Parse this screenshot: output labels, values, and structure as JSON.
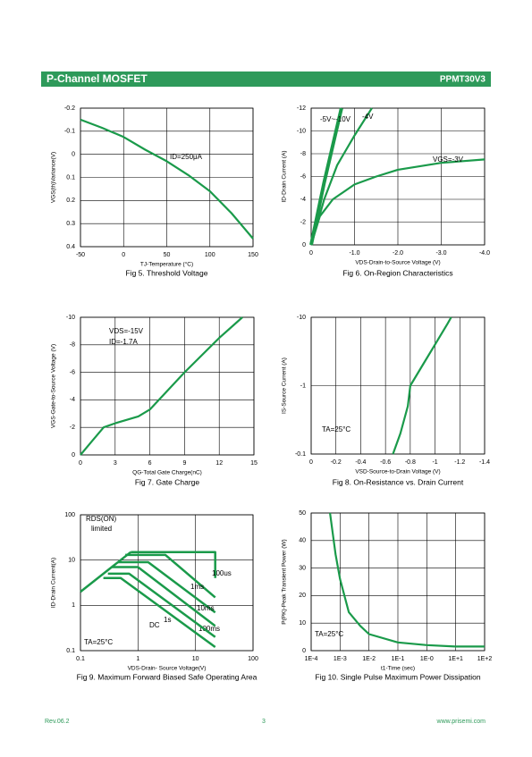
{
  "header": {
    "title": "P-Channel MOSFET",
    "part": "PPMT30V3"
  },
  "chart_data": [
    {
      "type": "line",
      "caption": "Fig 5. Threshold Voltage",
      "x_label": "TJ-Temperature (°C)",
      "y_label": "VGS(th)Variance(V)",
      "xlim": [
        -50,
        150
      ],
      "xticks": [
        -50,
        0,
        50,
        100,
        150
      ],
      "ylim": [
        0.4,
        -0.2
      ],
      "yticks": [
        -0.2,
        -0.1,
        0,
        0.1,
        0.2,
        0.3,
        0.4
      ],
      "grid": true,
      "annotations": [
        "ID=250μA"
      ],
      "series": [
        {
          "color": "#1a9a4a",
          "x": [
            -50,
            -25,
            0,
            25,
            50,
            75,
            100,
            125,
            150
          ],
          "y": [
            -0.15,
            -0.115,
            -0.075,
            -0.02,
            0.03,
            0.09,
            0.16,
            0.255,
            0.365
          ]
        }
      ]
    },
    {
      "type": "line",
      "caption": "Fig 6. On-Region Characteristics",
      "x_label": "VDS-Drain-to-Source Voltage (V)",
      "y_label": "ID-Drain Current (A)",
      "xlim": [
        0,
        -4
      ],
      "xticks": [
        0,
        {
          "value": -1,
          "label": "-1.0"
        },
        {
          "value": -2,
          "label": "-2.0"
        },
        {
          "value": -3,
          "label": "-3.0"
        },
        {
          "value": -4,
          "label": "-4.0"
        }
      ],
      "ylim": [
        0,
        -12
      ],
      "yticks": [
        0,
        -2,
        -4,
        -6,
        -8,
        -10,
        -12
      ],
      "grid": true,
      "series": [
        {
          "name": "-5V~-10V",
          "color": "#1a9a4a",
          "x": [
            0,
            -0.3,
            -0.7
          ],
          "y": [
            0,
            -5.5,
            -12
          ]
        },
        {
          "name": "-4V",
          "color": "#1a9a4a",
          "x": [
            0,
            -0.3,
            -0.6,
            -1.0,
            -1.4
          ],
          "y": [
            0,
            -4,
            -7,
            -9.6,
            -12
          ]
        },
        {
          "name": "VGS=-3V",
          "color": "#1a9a4a",
          "x": [
            0,
            -0.2,
            -0.5,
            -1.0,
            -1.5,
            -2,
            -3,
            -4
          ],
          "y": [
            0,
            -2.5,
            -4,
            -5.3,
            -6,
            -6.6,
            -7.2,
            -7.5
          ]
        }
      ]
    },
    {
      "type": "line",
      "caption": "Fig 7. Gate Charge",
      "x_label": "QG-Total Gate Charge(nC)",
      "y_label": "VGS-Gate-to-Source Voltage (V)",
      "xlim": [
        0,
        15
      ],
      "xticks": [
        0,
        3,
        6,
        9,
        12,
        15
      ],
      "ylim": [
        0,
        -10
      ],
      "yticks": [
        0,
        -2,
        -4,
        -6,
        -8,
        -10
      ],
      "grid": true,
      "annotations": [
        "VDS=-15V",
        "ID=-1.7A"
      ],
      "series": [
        {
          "color": "#1a9a4a",
          "x": [
            0,
            1,
            2,
            3,
            5,
            6,
            9,
            12,
            14
          ],
          "y": [
            0,
            -1,
            -2,
            -2.3,
            -2.8,
            -3.3,
            -6,
            -8.5,
            -10
          ]
        }
      ]
    },
    {
      "type": "line",
      "caption": "Fig 8. On-Resistance vs. Drain Current",
      "x_label": "VSD-Source-to-Drain Voltage (V)",
      "y_label": "IS-Source Current (A)",
      "xlim": [
        0,
        -1.4
      ],
      "xticks": [
        0,
        -0.2,
        -0.4,
        -0.6,
        -0.8,
        -1,
        -1.2,
        -1.4
      ],
      "ylim": [
        -0.1,
        -10
      ],
      "yticks": [
        -10,
        -1,
        -0.1
      ],
      "ylog": true,
      "grid": true,
      "annotations": [
        "TA=25°C"
      ],
      "series": [
        {
          "color": "#1a9a4a",
          "x": [
            -0.66,
            -0.72,
            -0.78,
            -0.8,
            -0.9,
            -1.0,
            -1.1,
            -1.13
          ],
          "y": [
            -0.1,
            -0.2,
            -0.5,
            -1,
            -2,
            -4,
            -8,
            -10
          ]
        }
      ]
    },
    {
      "type": "line",
      "caption": "Fig 9. Maximum Forward Biased Safe Operating Area",
      "x_label": "VDS-Drain- Source Voltage(V)",
      "y_label": "ID-Drain Current(A)",
      "xlim": [
        0.1,
        100
      ],
      "xticks": [
        0.1,
        1,
        10,
        100
      ],
      "xlog": true,
      "ylim": [
        0.1,
        100
      ],
      "yticks": [
        0.1,
        1,
        10,
        100
      ],
      "ylog": true,
      "grid": true,
      "annotations": [
        "RDS(ON)",
        "limited",
        "TA=25°C"
      ],
      "series": [
        {
          "color": "#1a9a4a",
          "x": [
            0.1,
            0.75
          ],
          "y": [
            2,
            15
          ]
        },
        {
          "name": "100us",
          "color": "#1a9a4a",
          "x": [
            0.75,
            22,
            22
          ],
          "y": [
            15,
            15,
            4
          ]
        },
        {
          "name": "1ms",
          "color": "#1a9a4a",
          "x": [
            0.6,
            3,
            22
          ],
          "y": [
            13,
            13,
            1.5
          ]
        },
        {
          "name": "10ms",
          "color": "#1a9a4a",
          "x": [
            0.45,
            1.5,
            22
          ],
          "y": [
            9,
            9,
            0.7
          ]
        },
        {
          "name": "100ms",
          "color": "#1a9a4a",
          "x": [
            0.35,
            1,
            22
          ],
          "y": [
            7,
            7,
            0.35
          ]
        },
        {
          "name": "1s",
          "color": "#1a9a4a",
          "x": [
            0.3,
            0.7,
            22
          ],
          "y": [
            5,
            5,
            0.2
          ]
        },
        {
          "name": "DC",
          "color": "#1a9a4a",
          "x": [
            0.25,
            0.5,
            22
          ],
          "y": [
            4,
            4,
            0.12
          ]
        }
      ]
    },
    {
      "type": "line",
      "caption": "Fig 10. Single Pulse Maximum Power Dissipation",
      "x_label": "t1-Time (sec)",
      "y_label": "P(PK)-Peak Transient Power (W)",
      "xlim": [
        0.0001,
        100
      ],
      "xlog": true,
      "xticks": [
        {
          "value": 0.0001,
          "label": "1E-4"
        },
        {
          "value": 0.001,
          "label": "1E-3"
        },
        {
          "value": 0.01,
          "label": "1E-2"
        },
        {
          "value": 0.1,
          "label": "1E-1"
        },
        {
          "value": 1,
          "label": "1E-0"
        },
        {
          "value": 10,
          "label": "1E+1"
        },
        {
          "value": 100,
          "label": "1E+2"
        }
      ],
      "ylim": [
        0,
        50
      ],
      "yticks": [
        0,
        10,
        20,
        30,
        40,
        50
      ],
      "grid": true,
      "annotations": [
        "TA=25°C"
      ],
      "series": [
        {
          "color": "#1a9a4a",
          "x": [
            0.00045,
            0.0007,
            0.001,
            0.002,
            0.005,
            0.01,
            0.1,
            1,
            10,
            100
          ],
          "y": [
            50,
            35,
            26,
            14,
            9,
            6,
            3,
            2,
            1.5,
            1.5
          ]
        }
      ]
    }
  ],
  "footer": {
    "revision": "Rev.06.2",
    "page": "3",
    "website": "www.prisemi.com"
  }
}
